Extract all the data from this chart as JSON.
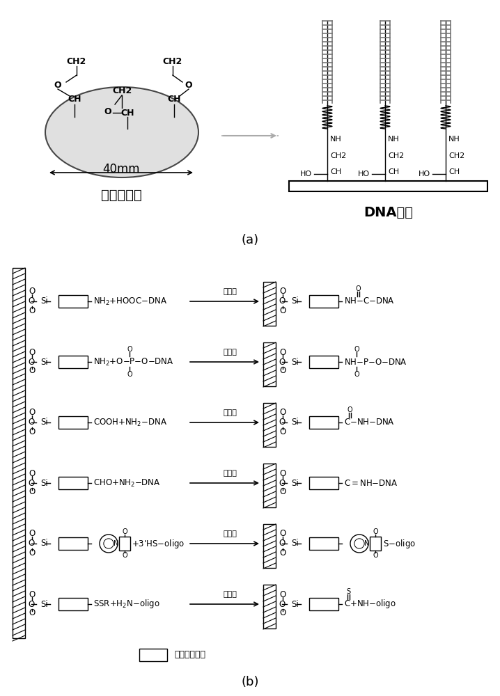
{
  "bg_color": "#ffffff",
  "panel_a_label": "(a)",
  "panel_b_label": "(b)",
  "epoxy_label": "环氧基玻片",
  "dna_fixed_label": "DNA固定",
  "size_label": "40mm",
  "crosslinker_label": "交联剂",
  "carbon_backbone_label": "为碳原子骨架",
  "ellipse_color": "#d4d4d4",
  "left_formulas": [
    "NH₂+HOOC-DNA",
    "NH₂+O-P-O-DNA",
    "COOH+NH₂-DNA",
    "CHO+NH₂-DNA",
    "+3’HS-oligo",
    "SSR+H₂N-oligo"
  ],
  "right_formulas": [
    "NH-C-DNA",
    "NH-P-O-DNA",
    "C-NH-DNA",
    "C=NH-DNA",
    "S-oligo",
    "C+NH-oligo"
  ]
}
